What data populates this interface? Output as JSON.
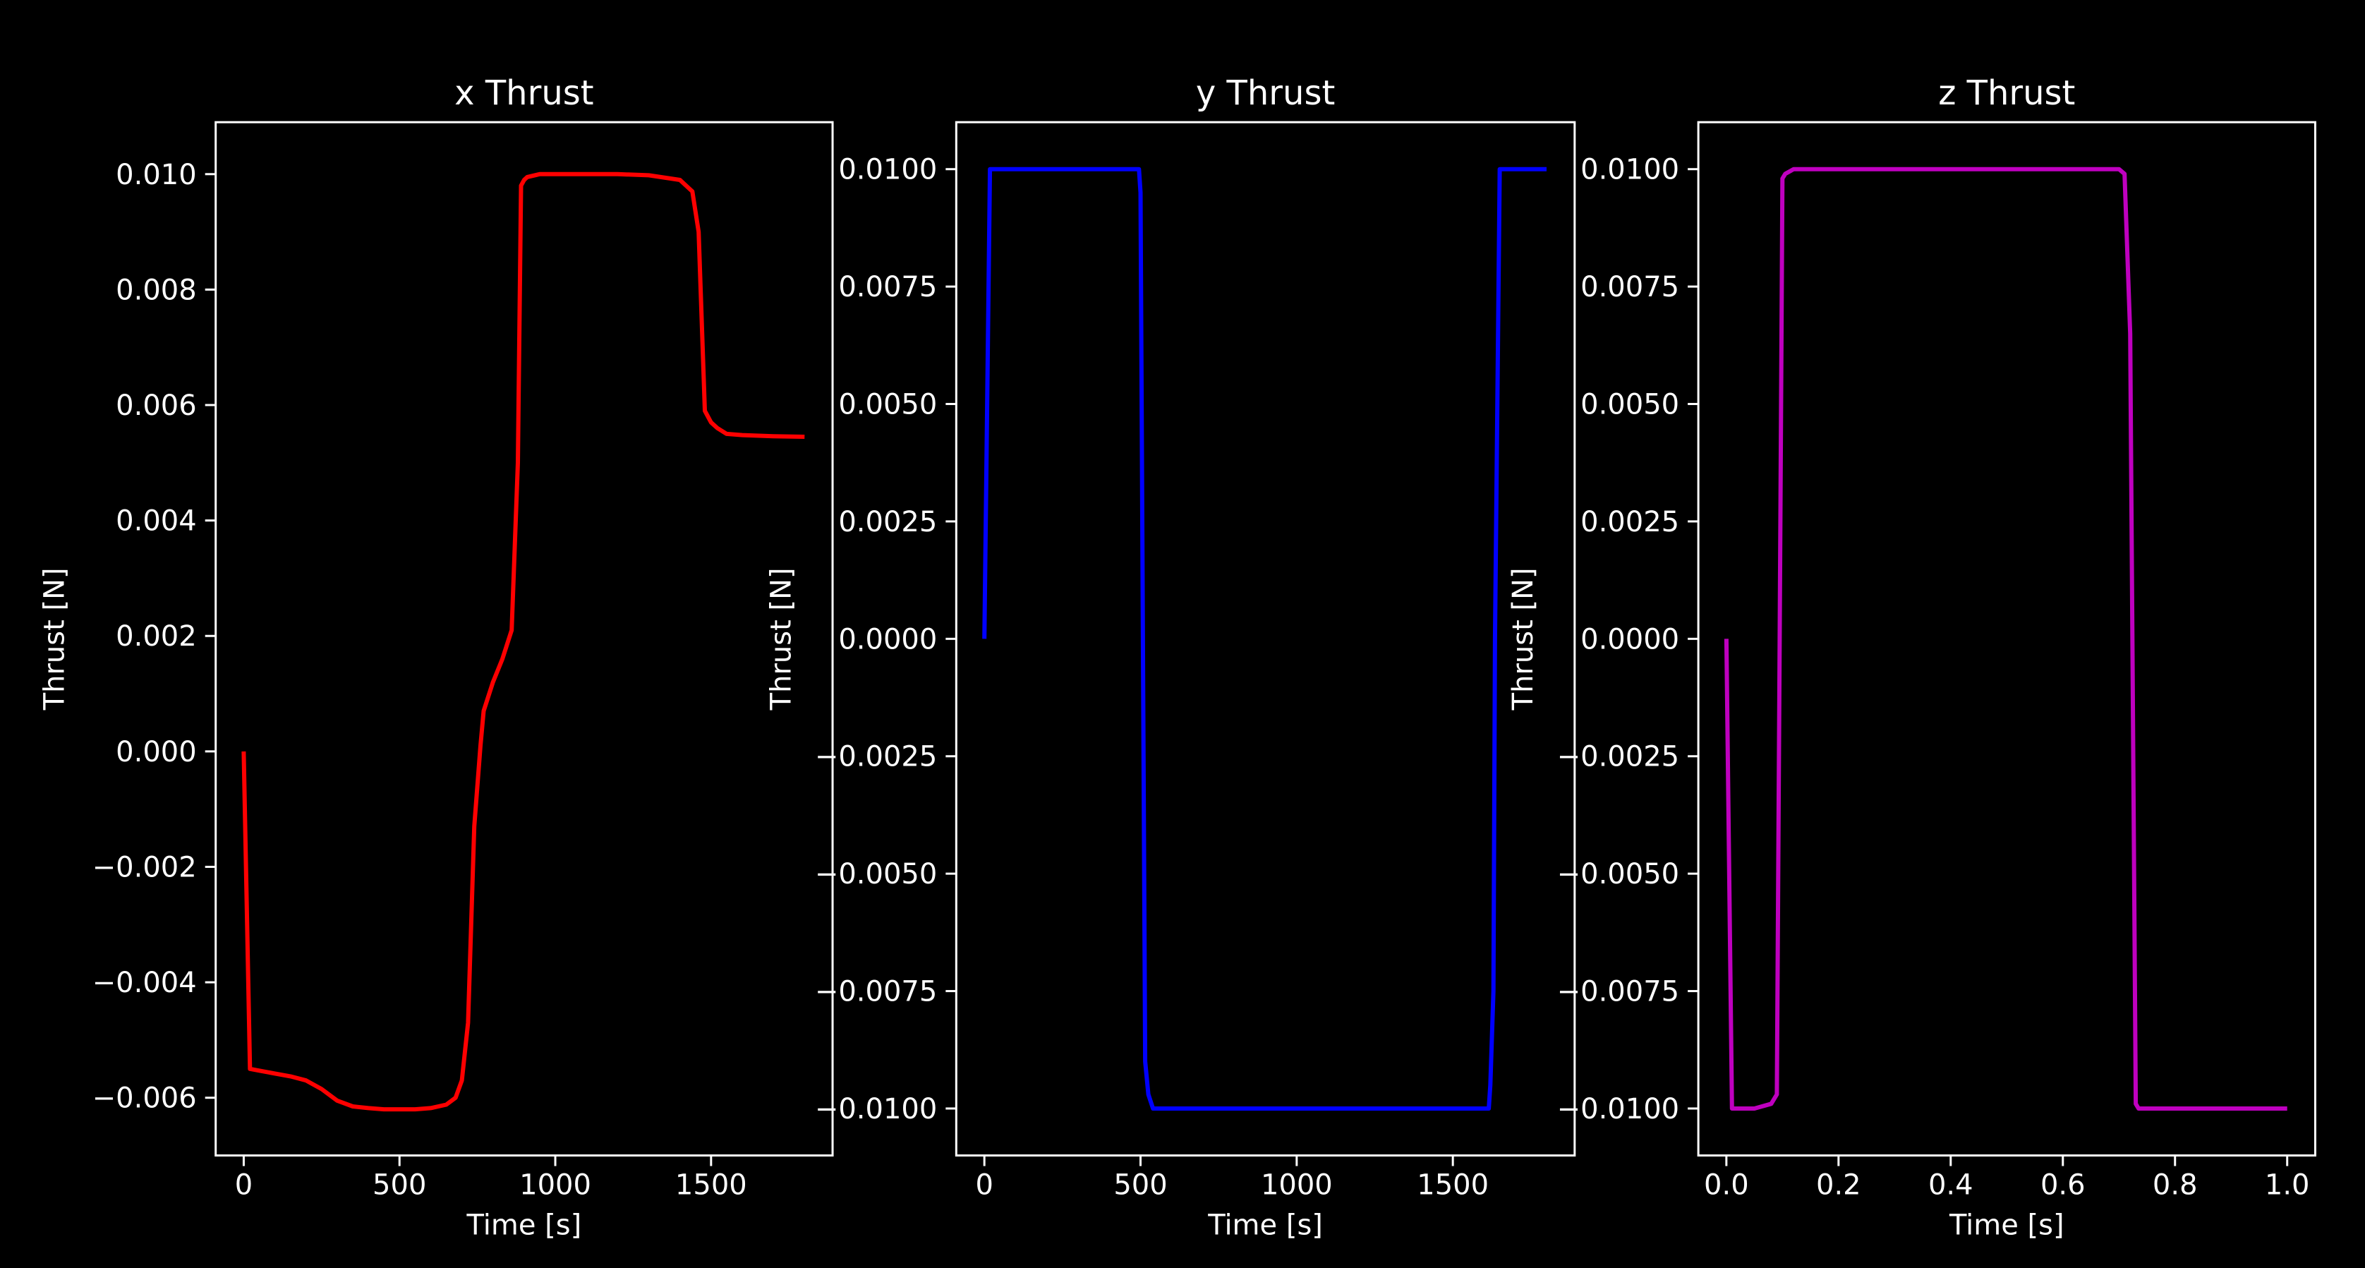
{
  "chart_data": [
    {
      "type": "line",
      "title": "x Thrust",
      "xlabel": "Time [s]",
      "ylabel": "Thrust [N]",
      "xlim": [
        -90,
        1890
      ],
      "ylim": [
        -0.007,
        0.0109
      ],
      "xticks": [
        0,
        500,
        1000,
        1500
      ],
      "xtick_labels": [
        "0",
        "500",
        "1000",
        "1500"
      ],
      "yticks": [
        -0.006,
        -0.004,
        -0.002,
        0.0,
        0.002,
        0.004,
        0.006,
        0.008,
        0.01
      ],
      "ytick_labels": [
        "−0.006",
        "−0.004",
        "−0.002",
        "0.000",
        "0.002",
        "0.004",
        "0.006",
        "0.008",
        "0.010"
      ],
      "grid": false,
      "series": [
        {
          "color": "#ff0000",
          "x": [
            0,
            20,
            50,
            100,
            150,
            200,
            250,
            300,
            350,
            400,
            450,
            500,
            550,
            600,
            650,
            680,
            700,
            720,
            740,
            760,
            770,
            800,
            830,
            860,
            880,
            890,
            900,
            910,
            950,
            1000,
            1100,
            1200,
            1300,
            1400,
            1440,
            1460,
            1480,
            1500,
            1520,
            1550,
            1600,
            1700,
            1800
          ],
          "y": [
            0.0,
            -0.0055,
            -0.00553,
            -0.00558,
            -0.00563,
            -0.0057,
            -0.00585,
            -0.00605,
            -0.00615,
            -0.00618,
            -0.0062,
            -0.0062,
            -0.0062,
            -0.00618,
            -0.00612,
            -0.006,
            -0.0057,
            -0.0047,
            -0.0013,
            0.0001,
            0.0007,
            0.0012,
            0.0016,
            0.0021,
            0.005,
            0.0098,
            0.0099,
            0.00995,
            0.01,
            0.01,
            0.01,
            0.01,
            0.00998,
            0.0099,
            0.0097,
            0.009,
            0.0059,
            0.0057,
            0.0056,
            0.0055,
            0.00548,
            0.00546,
            0.00545
          ]
        }
      ]
    },
    {
      "type": "line",
      "title": "y Thrust",
      "xlabel": "Time [s]",
      "ylabel": "Thrust [N]",
      "xlim": [
        -90,
        1890
      ],
      "ylim": [
        -0.011,
        0.011
      ],
      "xticks": [
        0,
        500,
        1000,
        1500
      ],
      "xtick_labels": [
        "0",
        "500",
        "1000",
        "1500"
      ],
      "yticks": [
        -0.01,
        -0.0075,
        -0.005,
        -0.0025,
        0.0,
        0.0025,
        0.005,
        0.0075,
        0.01
      ],
      "ytick_labels": [
        "−0.0100",
        "−0.0075",
        "−0.0050",
        "−0.0025",
        "0.0000",
        "0.0025",
        "0.0050",
        "0.0075",
        "0.0100"
      ],
      "grid": false,
      "series": [
        {
          "color": "#0000ff",
          "x": [
            0,
            18,
            100,
            200,
            300,
            400,
            495,
            500,
            515,
            525,
            540,
            600,
            800,
            1000,
            1200,
            1400,
            1500,
            1615,
            1620,
            1630,
            1635,
            1650,
            1700,
            1800
          ],
          "y": [
            0.0,
            0.01,
            0.01,
            0.01,
            0.01,
            0.01,
            0.01,
            0.0095,
            -0.009,
            -0.0097,
            -0.01,
            -0.01,
            -0.01,
            -0.01,
            -0.01,
            -0.01,
            -0.01,
            -0.01,
            -0.0095,
            -0.0075,
            0.0,
            0.01,
            0.01,
            0.01
          ]
        }
      ]
    },
    {
      "type": "line",
      "title": "z Thrust",
      "xlabel": "Time [s]",
      "ylabel": "Thrust [N]",
      "xlim": [
        -0.05,
        1.05
      ],
      "ylim": [
        -0.011,
        0.011
      ],
      "xticks": [
        0.0,
        0.2,
        0.4,
        0.6,
        0.8,
        1.0
      ],
      "xtick_labels": [
        "0.0",
        "0.2",
        "0.4",
        "0.6",
        "0.8",
        "1.0"
      ],
      "yticks": [
        -0.01,
        -0.0075,
        -0.005,
        -0.0025,
        0.0,
        0.0025,
        0.005,
        0.0075,
        0.01
      ],
      "ytick_labels": [
        "−0.0100",
        "−0.0075",
        "−0.0050",
        "−0.0025",
        "0.0000",
        "0.0025",
        "0.0050",
        "0.0075",
        "0.0100"
      ],
      "grid": false,
      "series": [
        {
          "color": "#bf00bf",
          "x": [
            0.0,
            0.01,
            0.02,
            0.05,
            0.08,
            0.09,
            0.095,
            0.1,
            0.105,
            0.12,
            0.15,
            0.2,
            0.3,
            0.4,
            0.5,
            0.6,
            0.7,
            0.71,
            0.72,
            0.73,
            0.735,
            0.75,
            0.8,
            0.9,
            1.0
          ],
          "y": [
            0.0,
            -0.01,
            -0.01,
            -0.01,
            -0.0099,
            -0.0097,
            0.0,
            0.0098,
            0.0099,
            0.01,
            0.01,
            0.01,
            0.01,
            0.01,
            0.01,
            0.01,
            0.01,
            0.0099,
            0.0065,
            -0.0099,
            -0.01,
            -0.01,
            -0.01,
            -0.01,
            -0.01
          ]
        }
      ]
    }
  ]
}
